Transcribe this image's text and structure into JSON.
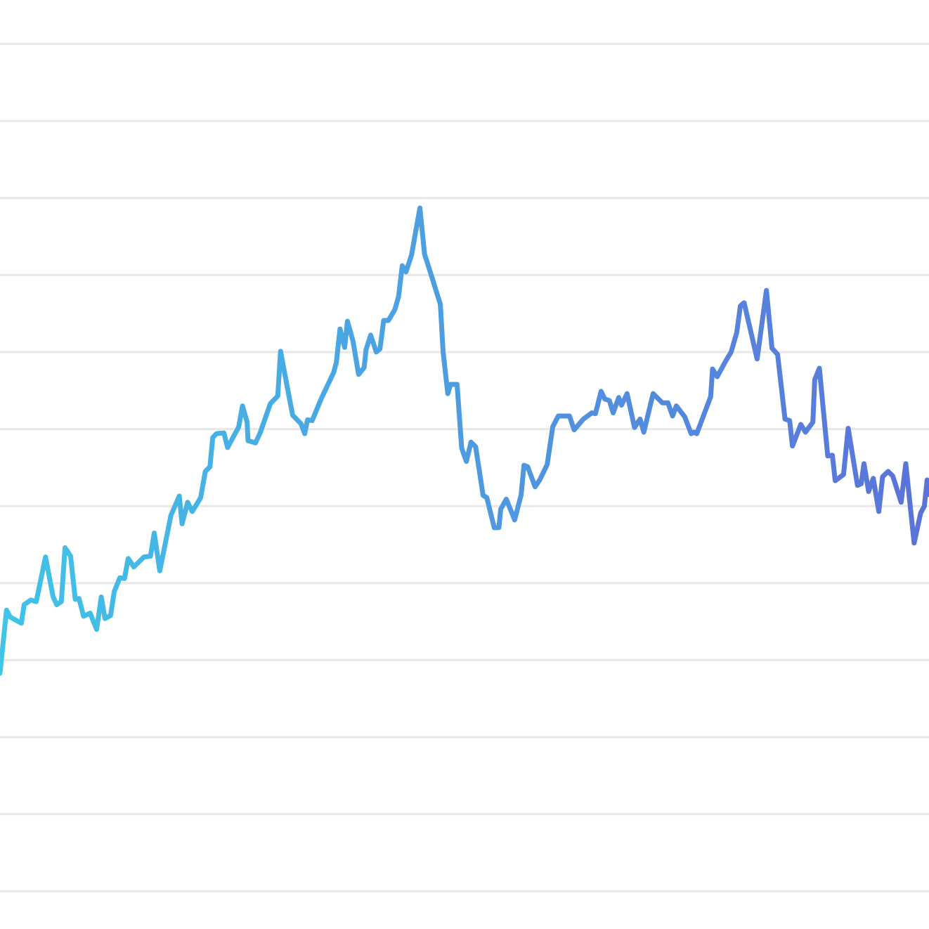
{
  "chart_data": {
    "type": "line",
    "xlim": [
      0,
      100
    ],
    "ylim": [
      -0.49,
      11.57
    ],
    "yticks": [
      0,
      1,
      2,
      3,
      4,
      5,
      6,
      7,
      8,
      9,
      10,
      11
    ],
    "grid": true,
    "grid_color": "#e8e8e8",
    "gradient": [
      "#40c4e8",
      "#5b73d9"
    ],
    "x": [
      0,
      0.7,
      1.1,
      2.3,
      2.6,
      3.3,
      3.9,
      4.9,
      5.7,
      6.1,
      6.6,
      7.0,
      7.6,
      8.1,
      8.5,
      9.0,
      9.7,
      10.4,
      10.9,
      11.3,
      11.9,
      12.3,
      12.9,
      13.4,
      13.8,
      14.4,
      15.5,
      16.2,
      16.6,
      17.2,
      18.4,
      19.3,
      19.6,
      20.2,
      20.7,
      21.6,
      22.1,
      22.6,
      22.9,
      23.3,
      24.1,
      24.5,
      25.7,
      26.1,
      26.6,
      26.7,
      27.5,
      28.0,
      29.1,
      29.9,
      30.2,
      30.9,
      31.5,
      32.4,
      32.8,
      33.1,
      33.6,
      34.6,
      35.9,
      36.2,
      36.6,
      37.1,
      37.4,
      38.0,
      38.6,
      39.2,
      39.4,
      39.9,
      40.5,
      40.9,
      41.3,
      41.8,
      42.5,
      42.9,
      43.3,
      43.7,
      44.3,
      45.2,
      45.7,
      46.6,
      47.4,
      47.7,
      48.2,
      48.5,
      49.2,
      49.7,
      50.2,
      50.7,
      51.2,
      52.0,
      52.4,
      53.2,
      53.7,
      53.9,
      54.5,
      55.4,
      56.1,
      56.4,
      56.8,
      57.6,
      58.1,
      58.9,
      59.5,
      60.1,
      61.3,
      61.8,
      62.8,
      63.7,
      64.1,
      64.7,
      65.1,
      65.6,
      66.0,
      66.6,
      66.9,
      67.5,
      68.3,
      68.9,
      69.3,
      70.3,
      71.3,
      71.9,
      72.4,
      72.8,
      73.7,
      74.4,
      74.7,
      75.0,
      76.5,
      76.7,
      77.2,
      78.1,
      78.7,
      79.3,
      79.7,
      80.1,
      81.5,
      82.5,
      83.1,
      83.7,
      84.5,
      85.0,
      85.3,
      86.2,
      86.7,
      87.5,
      87.7,
      88.2,
      89.1,
      89.6,
      89.9,
      90.8,
      91.3,
      92.3,
      92.7,
      93.0,
      93.5,
      94.0,
      94.6,
      95.0,
      95.6,
      96.1,
      97.0,
      97.5,
      98.4,
      99.1,
      99.5,
      99.8,
      100
    ],
    "values": [
      2.83,
      3.65,
      3.56,
      3.48,
      3.72,
      3.78,
      3.76,
      4.34,
      3.83,
      3.72,
      3.76,
      4.46,
      4.35,
      3.79,
      3.8,
      3.57,
      3.61,
      3.4,
      3.82,
      3.54,
      3.58,
      3.89,
      4.07,
      4.06,
      4.32,
      4.21,
      4.34,
      4.35,
      4.65,
      4.16,
      4.88,
      5.13,
      4.77,
      5.05,
      4.93,
      5.11,
      5.45,
      5.51,
      5.89,
      5.94,
      5.95,
      5.76,
      6.03,
      6.3,
      6.09,
      5.85,
      5.82,
      5.95,
      6.33,
      6.43,
      7.01,
      6.56,
      6.18,
      6.07,
      5.94,
      6.12,
      6.11,
      6.4,
      6.73,
      6.86,
      7.3,
      7.06,
      7.4,
      7.14,
      6.71,
      6.8,
      7.03,
      7.22,
      7.0,
      7.04,
      7.41,
      7.41,
      7.55,
      7.72,
      8.12,
      8.04,
      8.26,
      8.87,
      8.27,
      7.93,
      7.62,
      7.0,
      6.46,
      6.58,
      6.58,
      5.75,
      5.58,
      5.83,
      5.77,
      5.14,
      5.11,
      4.72,
      4.72,
      4.96,
      5.09,
      4.82,
      5.15,
      5.53,
      5.51,
      5.25,
      5.34,
      5.54,
      6.03,
      6.17,
      6.17,
      5.99,
      6.13,
      6.21,
      6.2,
      6.49,
      6.39,
      6.37,
      6.21,
      6.41,
      6.31,
      6.46,
      6.02,
      6.13,
      5.96,
      6.46,
      6.34,
      6.34,
      6.17,
      6.3,
      6.16,
      5.94,
      5.96,
      5.94,
      6.42,
      6.78,
      6.68,
      6.88,
      7.0,
      7.25,
      7.6,
      7.64,
      6.91,
      7.8,
      7.05,
      6.97,
      6.13,
      6.11,
      5.78,
      6.06,
      5.96,
      6.09,
      6.64,
      6.79,
      5.65,
      5.66,
      5.33,
      5.41,
      6.01,
      5.27,
      5.29,
      5.55,
      5.19,
      5.36,
      4.93,
      5.38,
      5.45,
      5.39,
      5.05,
      5.55,
      4.52,
      4.91,
      5.0,
      5.34,
      5.15
    ]
  }
}
